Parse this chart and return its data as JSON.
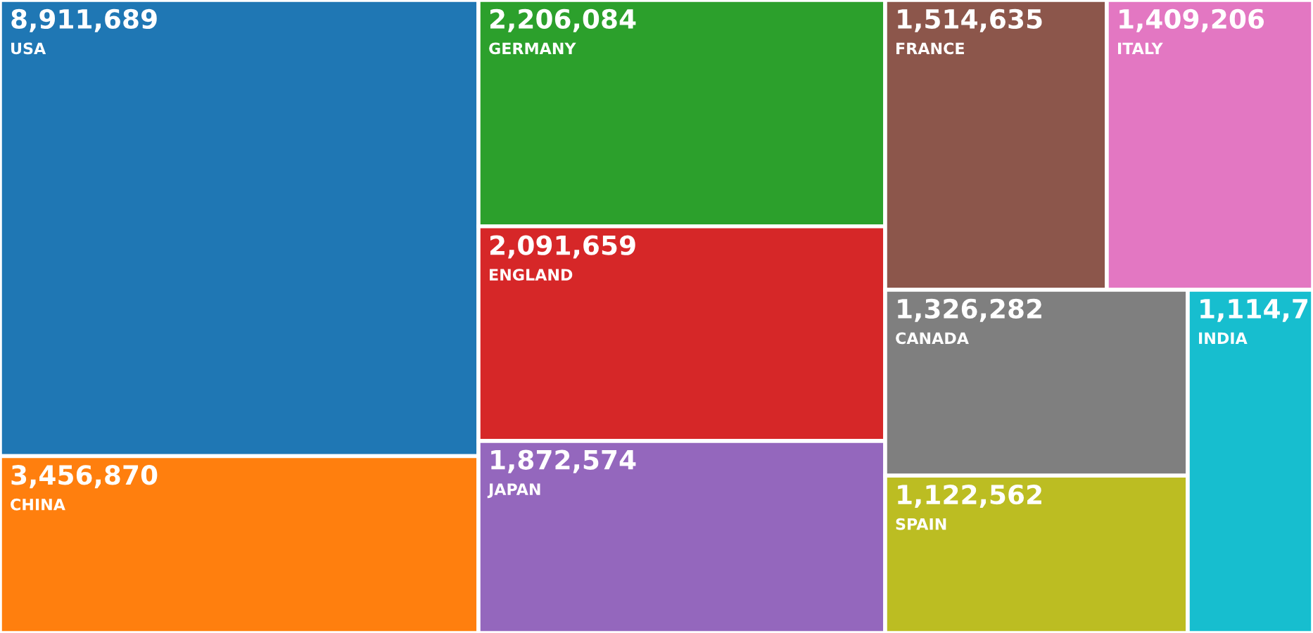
{
  "chart_data": {
    "type": "other",
    "categories": [
      "USA",
      "CHINA",
      "GERMANY",
      "ENGLAND",
      "JAPAN",
      "FRANCE",
      "ITALY",
      "CANADA",
      "SPAIN",
      "INDIA"
    ],
    "values": [
      8911689,
      3456870,
      2206084,
      2091659,
      1872574,
      1514635,
      1409206,
      1326282,
      1122562,
      null
    ],
    "value_labels": [
      "8,911,689",
      "3,456,870",
      "2,206,084",
      "2,091,659",
      "1,872,574",
      "1,514,635",
      "1,409,206",
      "1,326,282",
      "1,122,562",
      "1,114,7"
    ],
    "colors": [
      "#1f77b4",
      "#ff7f0e",
      "#2ca02c",
      "#d62728",
      "#9467bd",
      "#8c564b",
      "#e377c2",
      "#7f7f7f",
      "#bcbd22",
      "#17becf"
    ]
  }
}
